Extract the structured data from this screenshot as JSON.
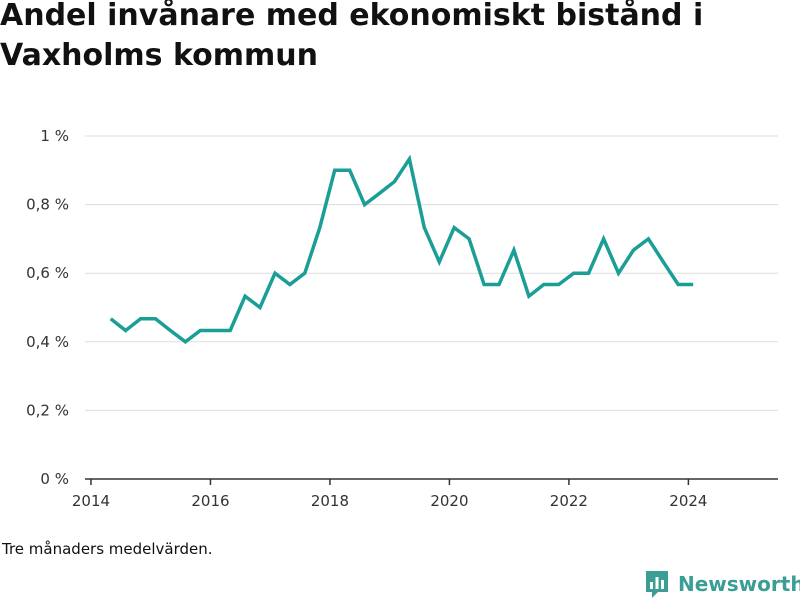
{
  "title": "Andel invånare med ekonomiskt bistånd i Vaxholms kommun",
  "note": "Tre månaders medelvärden.",
  "brand": {
    "name": "Newsworthy",
    "icon": "newsworthy-logo-icon",
    "color": "#3a9e97"
  },
  "colors": {
    "line": "#1a9e96",
    "grid": "#dddddd",
    "axis": "#333333"
  },
  "chart_data": {
    "type": "line",
    "title": "Andel invånare med ekonomiskt bistånd i Vaxholms kommun",
    "xlabel": "",
    "ylabel": "",
    "xlim": [
      2013.9,
      2025.5
    ],
    "ylim": [
      0,
      1
    ],
    "grid": true,
    "legend": "none",
    "x_ticks": [
      2014,
      2016,
      2018,
      2020,
      2022,
      2024
    ],
    "x_tick_labels": [
      "2014",
      "2016",
      "2018",
      "2020",
      "2022",
      "2024"
    ],
    "y_ticks": [
      0,
      0.2,
      0.4,
      0.6,
      0.8,
      1
    ],
    "y_tick_labels": [
      "0 %",
      "0,2 %",
      "0,4 %",
      "0,6 %",
      "0,8 %",
      "1 %"
    ],
    "series": [
      {
        "x": [
          2014.33,
          2014.58,
          2014.83,
          2015.08,
          2015.33,
          2015.58,
          2015.83,
          2016.08,
          2016.33,
          2016.58,
          2016.83,
          2017.08,
          2017.33,
          2017.58,
          2017.83,
          2018.08,
          2018.33,
          2018.58,
          2018.83,
          2019.08,
          2019.33,
          2019.58,
          2019.83,
          2020.08,
          2020.33,
          2020.58,
          2020.83,
          2021.08,
          2021.33,
          2021.58,
          2021.83,
          2022.08,
          2022.33,
          2022.58,
          2022.83,
          2023.08,
          2023.33,
          2023.58,
          2023.83,
          2024.08
        ],
        "values": [
          0.467,
          0.433,
          0.467,
          0.467,
          0.433,
          0.4,
          0.433,
          0.433,
          0.433,
          0.533,
          0.5,
          0.6,
          0.567,
          0.6,
          0.733,
          0.9,
          0.9,
          0.8,
          0.833,
          0.867,
          0.933,
          0.733,
          0.633,
          0.733,
          0.7,
          0.567,
          0.567,
          0.667,
          0.533,
          0.567,
          0.567,
          0.6,
          0.6,
          0.7,
          0.6,
          0.667,
          0.7,
          0.633,
          0.567,
          0.567
        ]
      }
    ]
  }
}
